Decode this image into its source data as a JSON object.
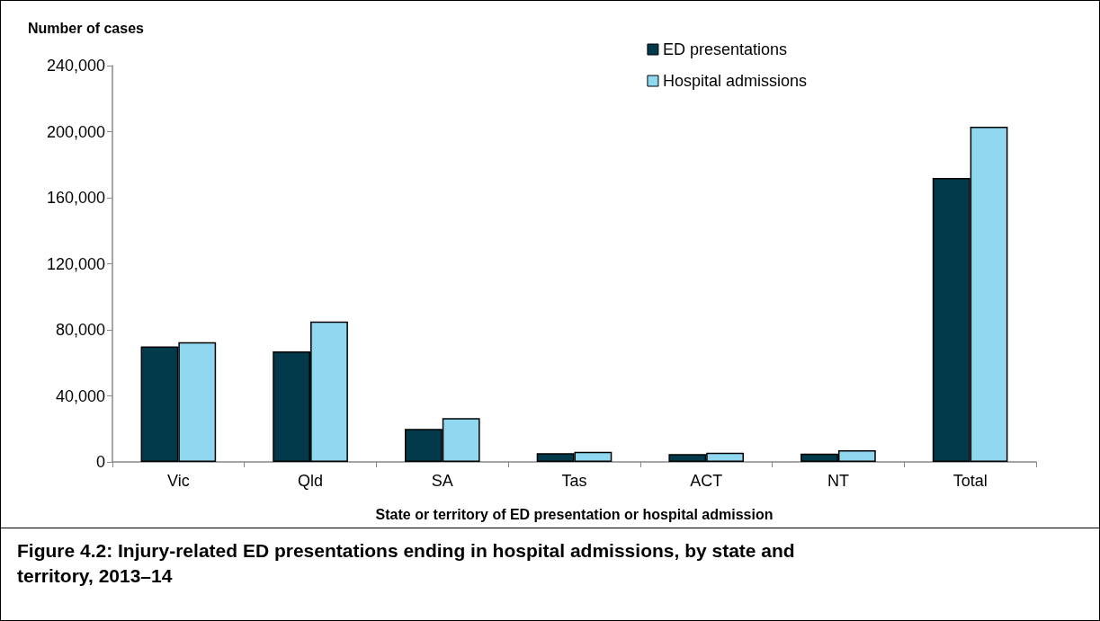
{
  "chart_data": {
    "type": "bar",
    "title": "Figure 4.2: Injury-related ED presentations ending in hospital admissions, by state and territory, 2013–14",
    "xlabel": "State or territory of ED presentation or hospital admission",
    "ylabel": "Number of cases",
    "categories": [
      "Vic",
      "Qld",
      "SA",
      "Tas",
      "ACT",
      "NT",
      "Total"
    ],
    "series": [
      {
        "name": "ED presentations",
        "color": "#023a4b",
        "values": [
          70000,
          67000,
          20000,
          5300,
          4700,
          5100,
          172000
        ]
      },
      {
        "name": "Hospital admissions",
        "color": "#8fd8f0",
        "values": [
          72500,
          85000,
          26500,
          6100,
          5600,
          7100,
          203000
        ]
      }
    ],
    "ylim": [
      0,
      240000
    ],
    "yticks": [
      0,
      {
        "value": 40000,
        "label": "40,000"
      },
      {
        "value": 80000,
        "label": "80,000"
      },
      {
        "value": 120000,
        "label": "120,000"
      },
      {
        "value": 160000,
        "label": "160,000"
      },
      {
        "value": 200000,
        "label": "200,000"
      },
      {
        "value": 240000,
        "label": "240,000"
      }
    ],
    "grid": false,
    "legend": "top right"
  }
}
